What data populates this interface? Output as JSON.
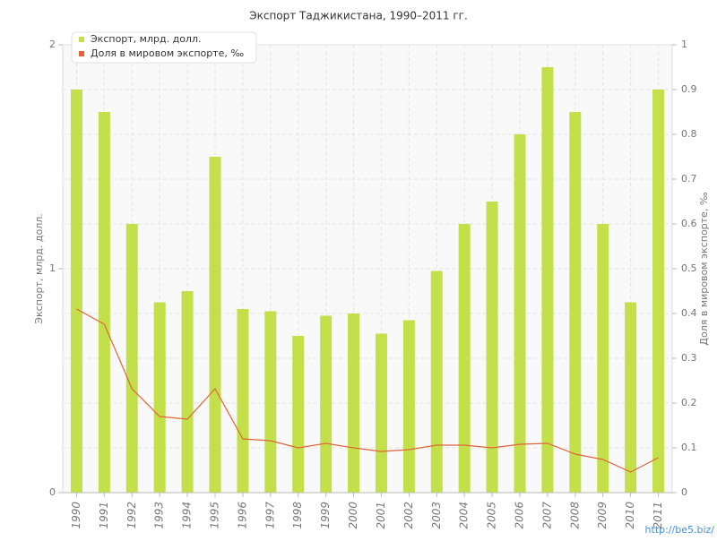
{
  "chart_data": {
    "type": "bar-line",
    "title": "Экспорт Таджикистана, 1990–2011 гг.",
    "ylabel": "Экспорт, млрд. долл.",
    "y2label": "Доля в мировом экспорте, ‰",
    "watermark": "http://be5.biz/",
    "categories": [
      "1990",
      "1991",
      "1992",
      "1993",
      "1994",
      "1995",
      "1996",
      "1997",
      "1998",
      "1999",
      "2000",
      "2001",
      "2002",
      "2003",
      "2004",
      "2005",
      "2006",
      "2007",
      "2008",
      "2009",
      "2010",
      "2011"
    ],
    "series": [
      {
        "name": "Экспорт, млрд. долл.",
        "color": "#c3e04a",
        "kind": "bar",
        "values": [
          1.8,
          1.7,
          1.2,
          0.85,
          0.9,
          1.5,
          0.82,
          0.81,
          0.7,
          0.79,
          0.8,
          0.71,
          0.77,
          0.99,
          1.2,
          1.3,
          1.6,
          1.9,
          1.7,
          1.2,
          0.85,
          1.8
        ]
      },
      {
        "name": "Доля в мировом экспорте, ‰",
        "color": "#e0643a",
        "kind": "line",
        "axis": "y2",
        "values": [
          0.41,
          0.376,
          0.232,
          0.17,
          0.164,
          0.232,
          0.12,
          0.116,
          0.1,
          0.11,
          0.1,
          0.092,
          0.096,
          0.106,
          0.106,
          0.1,
          0.108,
          0.11,
          0.086,
          0.074,
          0.046,
          0.078
        ]
      }
    ],
    "ylim": [
      0,
      2
    ],
    "yticks": [
      0,
      1,
      2
    ],
    "y2lim": [
      0,
      1
    ],
    "y2ticks": [
      0,
      0.1,
      0.2,
      0.3,
      0.4,
      0.5,
      0.6,
      0.7,
      0.8,
      0.9,
      1
    ],
    "grid": true,
    "legend": "top-left"
  }
}
